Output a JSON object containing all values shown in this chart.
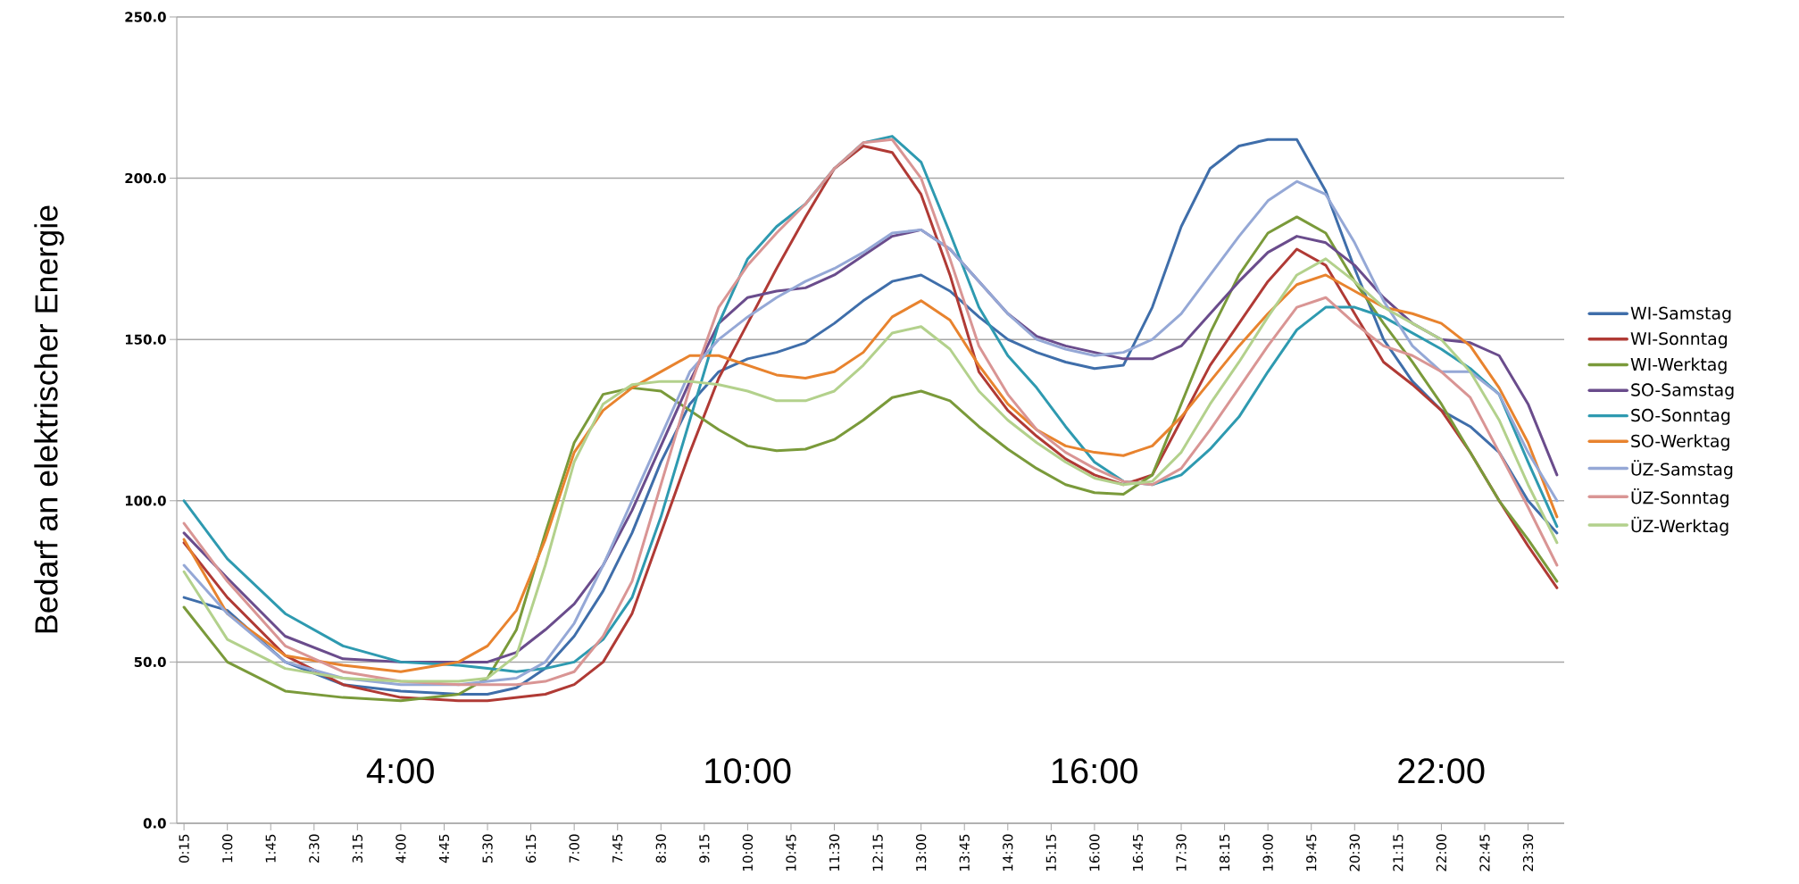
{
  "chart_data": {
    "type": "line",
    "ylabel": "Bedarf an elektrischer Energie",
    "x": [
      0.25,
      1,
      2,
      3,
      4,
      5,
      5.5,
      6,
      6.5,
      7,
      7.5,
      8,
      8.5,
      9,
      9.5,
      10,
      10.5,
      11,
      11.5,
      12,
      12.5,
      13,
      13.5,
      14,
      14.5,
      15,
      15.5,
      16,
      16.5,
      17,
      17.5,
      18,
      18.5,
      19,
      19.5,
      20,
      20.5,
      21,
      21.5,
      22,
      22.5,
      23,
      23.5,
      24
    ],
    "series": [
      {
        "name": "WI-Samstag",
        "color": "#3f6eaa",
        "values": [
          70,
          66,
          50,
          43,
          41,
          40,
          40,
          42,
          48,
          58,
          72,
          90,
          112,
          130,
          140,
          144,
          146,
          149,
          155,
          162,
          168,
          170,
          165,
          157,
          150,
          146,
          143,
          141,
          142,
          160,
          185,
          203,
          210,
          212,
          212,
          196,
          172,
          150,
          137,
          128,
          123,
          115,
          100,
          90
        ]
      },
      {
        "name": "WI-Sonntag",
        "color": "#b03a35",
        "values": [
          87,
          70,
          52,
          43,
          39,
          38,
          38,
          39,
          40,
          43,
          50,
          65,
          90,
          115,
          138,
          155,
          172,
          188,
          203,
          210,
          208,
          195,
          170,
          140,
          128,
          120,
          113,
          108,
          105,
          108,
          125,
          142,
          155,
          168,
          178,
          173,
          158,
          143,
          136,
          128,
          115,
          100,
          86,
          73
        ]
      },
      {
        "name": "WI-Werktag",
        "color": "#7a9a3a",
        "values": [
          67,
          50,
          41,
          39,
          38,
          40,
          45,
          60,
          90,
          118,
          133,
          135,
          134,
          128,
          122,
          117,
          115.5,
          116,
          119,
          125,
          132,
          134,
          131,
          123,
          116,
          110,
          105,
          102.5,
          102,
          108,
          130,
          152,
          170,
          183,
          188,
          183,
          168,
          155,
          143,
          130,
          115,
          100,
          88,
          75
        ]
      },
      {
        "name": "SO-Samstag",
        "color": "#6a4c8c",
        "values": [
          90,
          76,
          58,
          51,
          50,
          50,
          50,
          53,
          60,
          68,
          80,
          97,
          117,
          137,
          155,
          163,
          165,
          166,
          170,
          176,
          182,
          184,
          178,
          168,
          158,
          151,
          148,
          146,
          144,
          144,
          148,
          158,
          168,
          177,
          182,
          180,
          173,
          163,
          155,
          150,
          149,
          145,
          130,
          108
        ]
      },
      {
        "name": "SO-Sonntag",
        "color": "#2e9ab0",
        "values": [
          100,
          82,
          65,
          55,
          50,
          49,
          48,
          47,
          48,
          50,
          57,
          70,
          95,
          125,
          155,
          175,
          185,
          192,
          203,
          211,
          213,
          205,
          183,
          160,
          145,
          135,
          123,
          112,
          106,
          105,
          108,
          116,
          126,
          140,
          153,
          160,
          160,
          157,
          152,
          147,
          141,
          133,
          112,
          92
        ]
      },
      {
        "name": "SO-Werktag",
        "color": "#e8832e",
        "values": [
          88,
          65,
          52,
          49,
          47,
          50,
          55,
          66,
          88,
          115,
          128,
          135,
          140,
          145,
          145,
          142,
          139,
          138,
          140,
          146,
          157,
          162,
          156,
          142,
          130,
          122,
          117,
          115,
          114,
          117,
          126,
          137,
          148,
          158,
          167,
          170,
          165,
          160,
          158,
          155,
          148,
          135,
          118,
          95
        ]
      },
      {
        "name": "ÜZ-Samstag",
        "color": "#95a8d6",
        "values": [
          80,
          65,
          50,
          45,
          43,
          43,
          44,
          45,
          50,
          62,
          80,
          100,
          120,
          140,
          150,
          157,
          163,
          168,
          172,
          177,
          183,
          184,
          178,
          168,
          158,
          150,
          147,
          145,
          146,
          150,
          158,
          170,
          182,
          193,
          199,
          195,
          180,
          162,
          148,
          140,
          140,
          133,
          115,
          100
        ]
      },
      {
        "name": "ÜZ-Sonntag",
        "color": "#d99594",
        "values": [
          93,
          75,
          55,
          47,
          44,
          43,
          43,
          43,
          44,
          47,
          58,
          75,
          105,
          135,
          160,
          173,
          183,
          192,
          203,
          211,
          212,
          200,
          175,
          148,
          133,
          122,
          115,
          110,
          106,
          105,
          110,
          122,
          135,
          148,
          160,
          163,
          155,
          148,
          145,
          140,
          132,
          115,
          98,
          80
        ]
      },
      {
        "name": "ÜZ-Werktag",
        "color": "#b3d18c",
        "values": [
          78,
          57,
          48,
          45,
          44,
          44,
          45,
          52,
          80,
          112,
          130,
          136,
          137,
          137,
          136,
          134,
          131,
          131,
          134,
          142,
          152,
          154,
          147,
          134,
          125,
          118,
          112,
          107,
          105,
          106,
          115,
          130,
          143,
          157,
          170,
          175,
          168,
          160,
          155,
          150,
          140,
          125,
          105,
          87
        ]
      }
    ],
    "xlim": [
      0.125,
      24.125
    ],
    "xticks": [
      {
        "value": 0.25,
        "label": "0:15"
      },
      {
        "value": 1,
        "label": "1:00"
      },
      {
        "value": 1.75,
        "label": "1:45"
      },
      {
        "value": 2.5,
        "label": "2:30"
      },
      {
        "value": 3.25,
        "label": "3:15"
      },
      {
        "value": 4,
        "label": "4:00"
      },
      {
        "value": 4.75,
        "label": "4:45"
      },
      {
        "value": 5.5,
        "label": "5:30"
      },
      {
        "value": 6.25,
        "label": "6:15"
      },
      {
        "value": 7,
        "label": "7:00"
      },
      {
        "value": 7.75,
        "label": "7:45"
      },
      {
        "value": 8.5,
        "label": "8:30"
      },
      {
        "value": 9.25,
        "label": "9:15"
      },
      {
        "value": 10,
        "label": "10:00"
      },
      {
        "value": 10.75,
        "label": "10:45"
      },
      {
        "value": 11.5,
        "label": "11:30"
      },
      {
        "value": 12.25,
        "label": "12:15"
      },
      {
        "value": 13,
        "label": "13:00"
      },
      {
        "value": 13.75,
        "label": "13:45"
      },
      {
        "value": 14.5,
        "label": "14:30"
      },
      {
        "value": 15.25,
        "label": "15:15"
      },
      {
        "value": 16,
        "label": "16:00"
      },
      {
        "value": 16.75,
        "label": "16:45"
      },
      {
        "value": 17.5,
        "label": "17:30"
      },
      {
        "value": 18.25,
        "label": "18:15"
      },
      {
        "value": 19,
        "label": "19:00"
      },
      {
        "value": 19.75,
        "label": "19:45"
      },
      {
        "value": 20.5,
        "label": "20:30"
      },
      {
        "value": 21.25,
        "label": "21:15"
      },
      {
        "value": 22,
        "label": "22:00"
      },
      {
        "value": 22.75,
        "label": "22:45"
      },
      {
        "value": 23.5,
        "label": "23:30"
      }
    ],
    "ylim": [
      0,
      250
    ],
    "yticks": [
      {
        "value": 0,
        "label": "0.0"
      },
      {
        "value": 50,
        "label": "50.0"
      },
      {
        "value": 100,
        "label": "100.0"
      },
      {
        "value": 150,
        "label": "150.0"
      },
      {
        "value": 200,
        "label": "200.0"
      },
      {
        "value": 250,
        "label": "250.0"
      }
    ],
    "annotations": [
      "4:00",
      "10:00",
      "16:00",
      "22:00"
    ],
    "grid": "y",
    "legend": "right",
    "marker": "none",
    "line_style": "solid"
  }
}
